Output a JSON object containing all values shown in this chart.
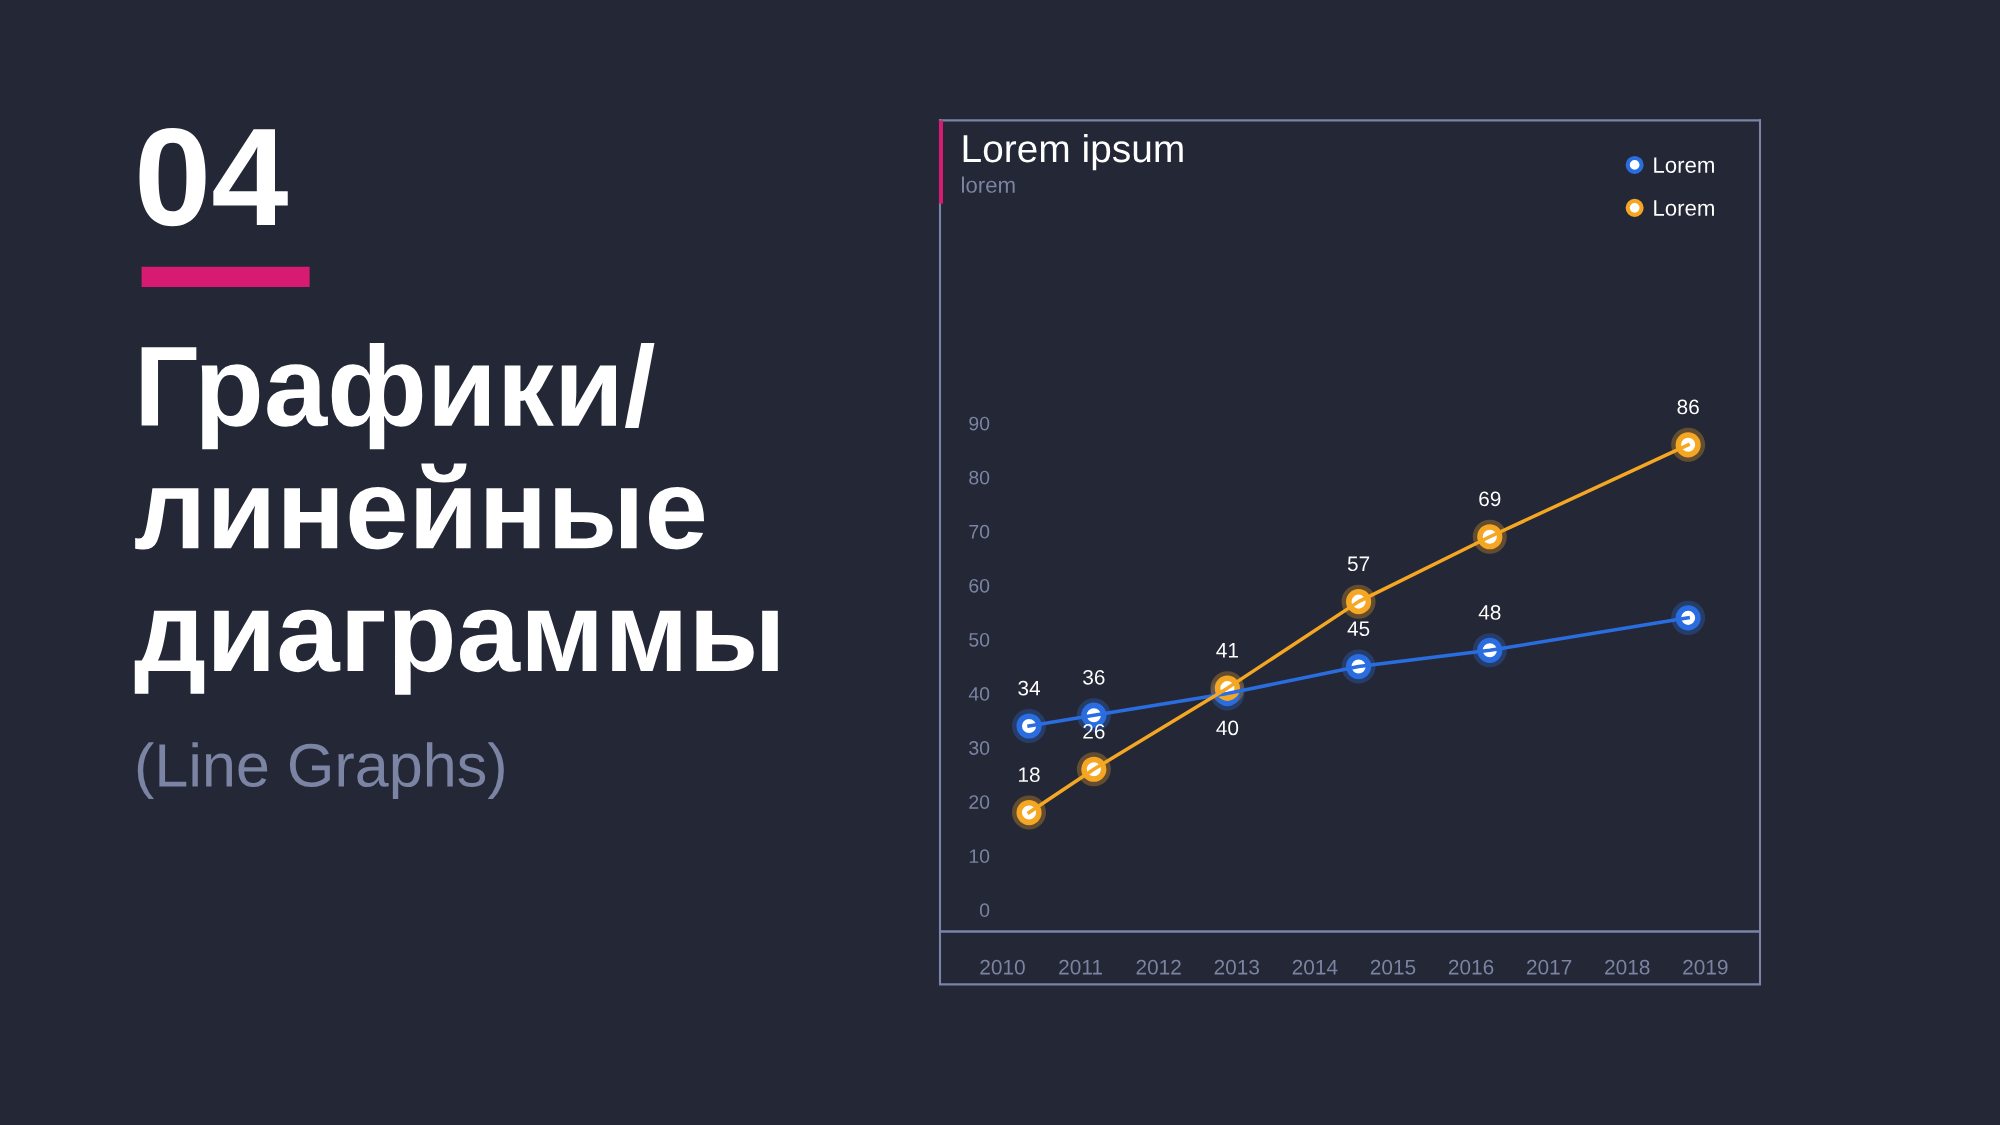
{
  "chart_data": {
    "type": "line",
    "title": "Lorem ipsum",
    "subtitle": "lorem",
    "annotations": [
      "04",
      "Графики/\nлинейные\nдиаграммы",
      "(Line Graphs)"
    ],
    "xlim": [
      2009.2,
      2019.7
    ],
    "xticks": [
      2010,
      2011,
      2012,
      2013,
      2014,
      2015,
      2016,
      2017,
      2018,
      2019
    ],
    "ylim": [
      -4,
      146
    ],
    "yticks": [
      0,
      10,
      20,
      30,
      40,
      50,
      60,
      70,
      80,
      90
    ],
    "grid": false,
    "legend": "top right",
    "marker": "circle",
    "line_style": "solid",
    "series": [
      {
        "name": "Lorem",
        "color": "#2a6de0",
        "x": [
          2010.34,
          2011.17,
          2012.88,
          2014.56,
          2016.24,
          2018.78
        ],
        "values": [
          34,
          36,
          40,
          45,
          48,
          54
        ],
        "value_labels": [
          "34",
          "36",
          "40",
          "45",
          "48",
          null
        ]
      },
      {
        "name": "Lorem",
        "color": "#f5a623",
        "x": [
          2010.34,
          2011.17,
          2012.88,
          2014.56,
          2016.24,
          2018.78
        ],
        "values": [
          18,
          26,
          41,
          57,
          69,
          86
        ],
        "value_labels": [
          "18",
          "26",
          "41",
          "57",
          "69",
          "86"
        ]
      }
    ]
  }
}
